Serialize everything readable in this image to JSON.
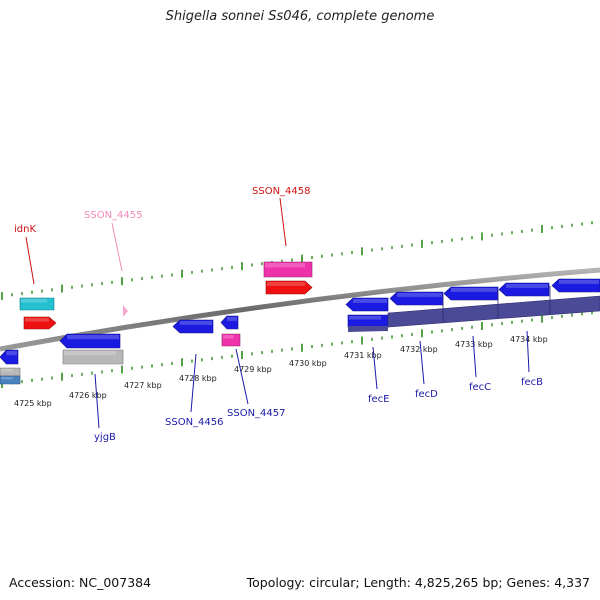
{
  "title": "Shigella sonnei Ss046, complete genome",
  "footer": {
    "accession": "Accession: NC_007384",
    "summary": "Topology: circular; Length: 4,825,265 bp; Genes: 4,337"
  },
  "colors": {
    "backbone": "#808080",
    "tick": "#2a8a1a",
    "label_blue": "#1a1aa8",
    "label_red": "#cc1111",
    "label_pink": "#f08ab8",
    "gene_blue": "#1a1ae0",
    "gene_red": "#ee1111",
    "gene_pink": "#ee33aa",
    "gene_cyan": "#22c0d0",
    "gene_gray": "#b8b8b8",
    "gene_lightblue": "#4a82c0",
    "operon_purple": "#4a4a96"
  },
  "ruler": {
    "labels": [
      "4725 kbp",
      "4726 kbp",
      "4727 kbp",
      "4728 kbp",
      "4729 kbp",
      "4730 kbp",
      "4731 kbp",
      "4732 kbp",
      "4733 kbp",
      "4734 kbp"
    ]
  },
  "gene_labels": [
    {
      "text": "idnK",
      "color": "red"
    },
    {
      "text": "SSON_4455",
      "color": "pink"
    },
    {
      "text": "SSON_4458",
      "color": "red"
    },
    {
      "text": "yjgB",
      "color": "blue"
    },
    {
      "text": "SSON_4456",
      "color": "blue"
    },
    {
      "text": "SSON_4457",
      "color": "blue"
    },
    {
      "text": "fecE",
      "color": "blue"
    },
    {
      "text": "fecD",
      "color": "blue"
    },
    {
      "text": "fecC",
      "color": "blue"
    },
    {
      "text": "fecB",
      "color": "blue"
    }
  ]
}
